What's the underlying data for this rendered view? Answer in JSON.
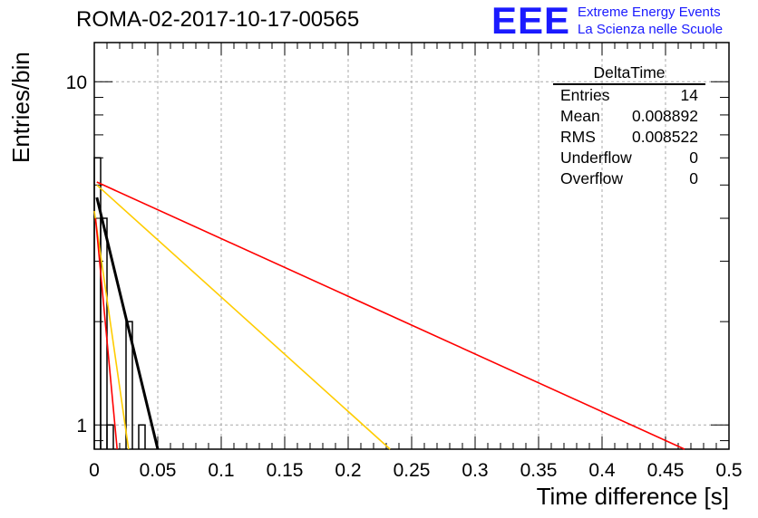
{
  "title": "ROMA-02-2017-10-17-00565",
  "logo": {
    "mark": "EEE",
    "line1": "Extreme Energy Events",
    "line2": "La Scienza nelle Scuole"
  },
  "stats_box": {
    "title": "DeltaTime",
    "rows": [
      {
        "label": "Entries",
        "value": "14"
      },
      {
        "label": "Mean",
        "value": "0.008892"
      },
      {
        "label": "RMS",
        "value": "0.008522"
      },
      {
        "label": "Underflow",
        "value": "0"
      },
      {
        "label": "Overflow",
        "value": "0"
      }
    ]
  },
  "chart_data": {
    "type": "line",
    "xlabel": "Time difference [s]",
    "ylabel": "Entries/bin",
    "xlim": [
      0,
      0.5
    ],
    "ylim": [
      0.85,
      13
    ],
    "yscale": "log",
    "grid": true,
    "x_ticks": [
      "0",
      "0.05",
      "0.1",
      "0.15",
      "0.2",
      "0.25",
      "0.3",
      "0.35",
      "0.4",
      "0.45",
      "0.5"
    ],
    "y_ticks": [
      "1",
      "10"
    ],
    "histogram": {
      "bin_width": 0.005,
      "bins": [
        {
          "x0": 0.0,
          "x1": 0.005,
          "count": 6
        },
        {
          "x0": 0.005,
          "x1": 0.01,
          "count": 4
        },
        {
          "x0": 0.01,
          "x1": 0.015,
          "count": 1
        },
        {
          "x0": 0.025,
          "x1": 0.03,
          "count": 2
        },
        {
          "x0": 0.035,
          "x1": 0.04,
          "count": 1
        }
      ]
    },
    "series": [
      {
        "color": "#000000",
        "width": 3,
        "x": [
          0.002,
          0.05
        ],
        "y": [
          4.6,
          0.85
        ]
      },
      {
        "color": "#ff0000",
        "width": 1.6,
        "x": [
          0.002,
          0.465
        ],
        "y": [
          5.1,
          0.85
        ]
      },
      {
        "color": "#ffcc00",
        "width": 1.6,
        "x": [
          0.002,
          0.233
        ],
        "y": [
          5.0,
          0.85
        ]
      },
      {
        "color": "#ffcc00",
        "width": 1.6,
        "x": [
          0.0,
          0.027
        ],
        "y": [
          4.2,
          0.85
        ]
      },
      {
        "color": "#ff0000",
        "width": 1.6,
        "x": [
          0.001,
          0.018
        ],
        "y": [
          4.0,
          0.85
        ]
      }
    ]
  }
}
